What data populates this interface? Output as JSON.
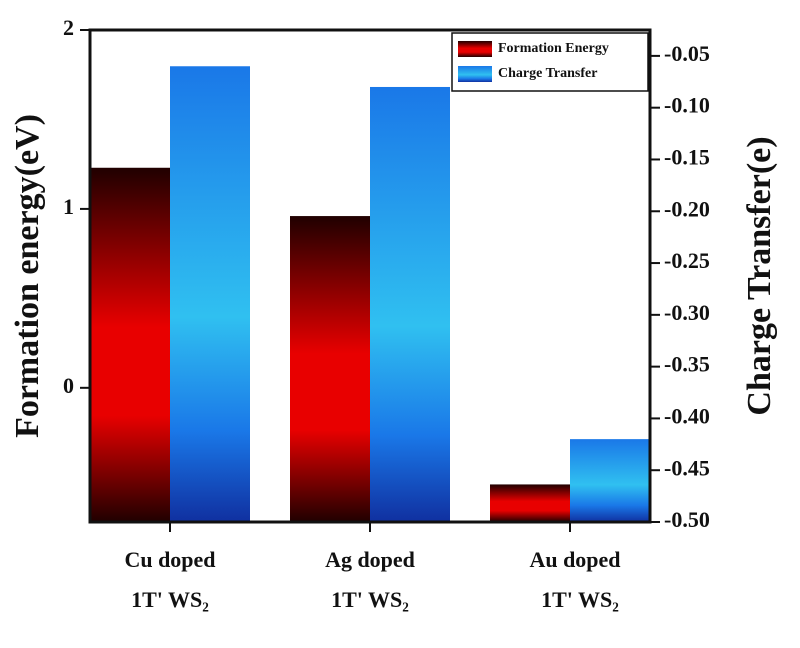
{
  "chart_data": {
    "type": "bar",
    "categories": [
      [
        "Cu doped",
        "1T' WS₂"
      ],
      [
        "Ag doped",
        "1T' WS₂"
      ],
      [
        "Au doped",
        "1T' WS₂"
      ]
    ],
    "series": [
      {
        "name": "Formation Energy",
        "color": "#e80000",
        "values": [
          1.23,
          0.96,
          -0.54
        ]
      },
      {
        "name": "Charge Transfer",
        "color": "#1a78e8",
        "axis": "y2",
        "values": [
          -0.06,
          -0.08,
          -0.42
        ]
      }
    ],
    "ylabel": "Formation energy(eV)",
    "y2label": "Charge Transfer(e)",
    "ylim": [
      -0.75,
      2
    ],
    "yticks": [
      0,
      1,
      2
    ],
    "y2lim": [
      -0.5,
      -0.025
    ],
    "y2ticks": [
      -0.05,
      {
        "value": -0.1,
        "label": "-0.10"
      },
      -0.15,
      {
        "value": -0.2,
        "label": "-0.20"
      },
      -0.25,
      {
        "value": -0.3,
        "label": "-0.30"
      },
      -0.35,
      {
        "value": -0.4,
        "label": "-0.40"
      },
      -0.45,
      {
        "value": -0.5,
        "label": "-0.50"
      }
    ],
    "legend": "upper right"
  }
}
